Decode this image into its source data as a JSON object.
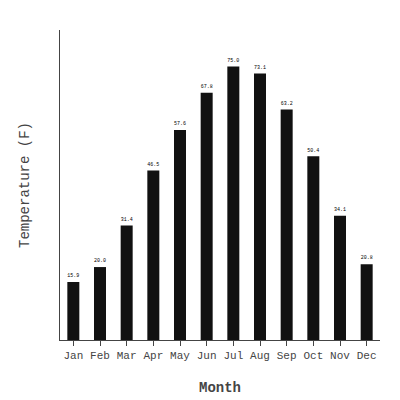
{
  "chart_data": {
    "type": "bar",
    "categories": [
      "Jan",
      "Feb",
      "Mar",
      "Apr",
      "May",
      "Jun",
      "Jul",
      "Aug",
      "Sep",
      "Oct",
      "Nov",
      "Dec"
    ],
    "values": [
      15.9,
      20.0,
      31.4,
      46.5,
      57.6,
      67.8,
      75.0,
      73.1,
      63.2,
      50.4,
      34.1,
      20.8
    ],
    "value_labels": [
      "15.9",
      "20.0",
      "31.4",
      "46.5",
      "57.6",
      "67.8",
      "75.0",
      "73.1",
      "63.2",
      "50.4",
      "34.1",
      "20.8"
    ],
    "color": "#111111",
    "xlabel": "Month",
    "ylabel": "Temperature (F)",
    "ylim": [
      0,
      85
    ],
    "grid": false,
    "data_labels": true,
    "tick_labels": "x"
  }
}
